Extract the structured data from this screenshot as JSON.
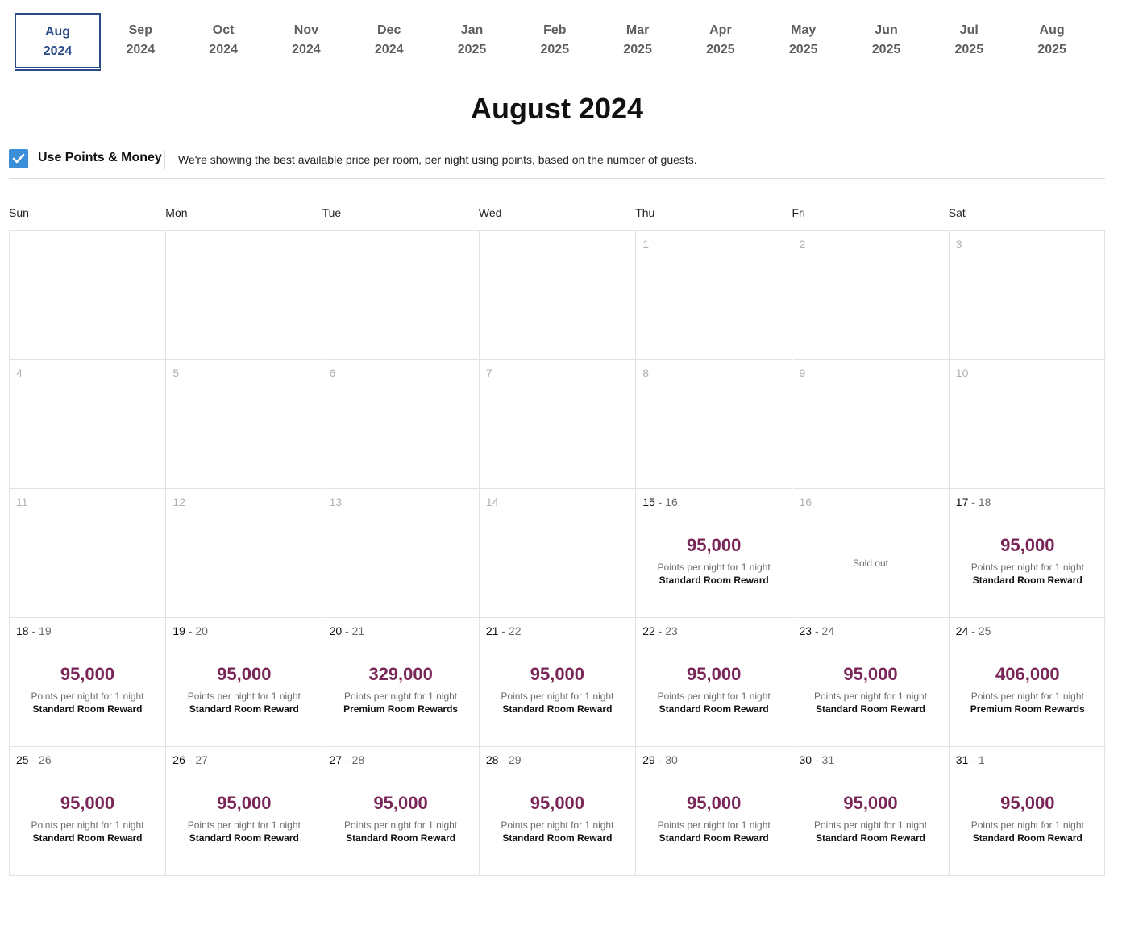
{
  "tabs": [
    {
      "month": "Aug",
      "year": "2024",
      "active": true
    },
    {
      "month": "Sep",
      "year": "2024"
    },
    {
      "month": "Oct",
      "year": "2024"
    },
    {
      "month": "Nov",
      "year": "2024"
    },
    {
      "month": "Dec",
      "year": "2024"
    },
    {
      "month": "Jan",
      "year": "2025"
    },
    {
      "month": "Feb",
      "year": "2025"
    },
    {
      "month": "Mar",
      "year": "2025"
    },
    {
      "month": "Apr",
      "year": "2025"
    },
    {
      "month": "May",
      "year": "2025"
    },
    {
      "month": "Jun",
      "year": "2025"
    },
    {
      "month": "Jul",
      "year": "2025"
    },
    {
      "month": "Aug",
      "year": "2025"
    }
  ],
  "title": "August 2024",
  "points_toggle": {
    "label": "Use Points & Money",
    "checked": true,
    "info": "We're showing the best available price per room, per night using points, based on the number of guests."
  },
  "weekdays": [
    "Sun",
    "Mon",
    "Tue",
    "Wed",
    "Thu",
    "Fri",
    "Sat"
  ],
  "price_sub_label": "Points per night for 1 night",
  "cells": [
    {},
    {},
    {},
    {},
    {
      "d1": "1",
      "dim": true
    },
    {
      "d1": "2",
      "dim": true
    },
    {
      "d1": "3",
      "dim": true
    },
    {
      "d1": "4",
      "dim": true
    },
    {
      "d1": "5",
      "dim": true
    },
    {
      "d1": "6",
      "dim": true
    },
    {
      "d1": "7",
      "dim": true
    },
    {
      "d1": "8",
      "dim": true
    },
    {
      "d1": "9",
      "dim": true
    },
    {
      "d1": "10",
      "dim": true
    },
    {
      "d1": "11",
      "dim": true
    },
    {
      "d1": "12",
      "dim": true
    },
    {
      "d1": "13",
      "dim": true
    },
    {
      "d1": "14",
      "dim": true
    },
    {
      "d1": "15",
      "d2": "16",
      "price": "95,000",
      "room": "Standard Room Reward"
    },
    {
      "d1": "16",
      "dim": true,
      "status": "Sold out"
    },
    {
      "d1": "17",
      "d2": "18",
      "price": "95,000",
      "room": "Standard Room Reward"
    },
    {
      "d1": "18",
      "d2": "19",
      "price": "95,000",
      "room": "Standard Room Reward"
    },
    {
      "d1": "19",
      "d2": "20",
      "price": "95,000",
      "room": "Standard Room Reward"
    },
    {
      "d1": "20",
      "d2": "21",
      "price": "329,000",
      "room": "Premium Room Rewards"
    },
    {
      "d1": "21",
      "d2": "22",
      "price": "95,000",
      "room": "Standard Room Reward"
    },
    {
      "d1": "22",
      "d2": "23",
      "price": "95,000",
      "room": "Standard Room Reward"
    },
    {
      "d1": "23",
      "d2": "24",
      "price": "95,000",
      "room": "Standard Room Reward"
    },
    {
      "d1": "24",
      "d2": "25",
      "price": "406,000",
      "room": "Premium Room Rewards"
    },
    {
      "d1": "25",
      "d2": "26",
      "price": "95,000",
      "room": "Standard Room Reward"
    },
    {
      "d1": "26",
      "d2": "27",
      "price": "95,000",
      "room": "Standard Room Reward"
    },
    {
      "d1": "27",
      "d2": "28",
      "price": "95,000",
      "room": "Standard Room Reward"
    },
    {
      "d1": "28",
      "d2": "29",
      "price": "95,000",
      "room": "Standard Room Reward"
    },
    {
      "d1": "29",
      "d2": "30",
      "price": "95,000",
      "room": "Standard Room Reward"
    },
    {
      "d1": "30",
      "d2": "31",
      "price": "95,000",
      "room": "Standard Room Reward"
    },
    {
      "d1": "31",
      "d2": "1",
      "price": "95,000",
      "room": "Standard Room Reward"
    }
  ],
  "colors": {
    "accent": "#2a4a8a",
    "price": "#7a2558",
    "checkbox": "#3b8ed8"
  }
}
